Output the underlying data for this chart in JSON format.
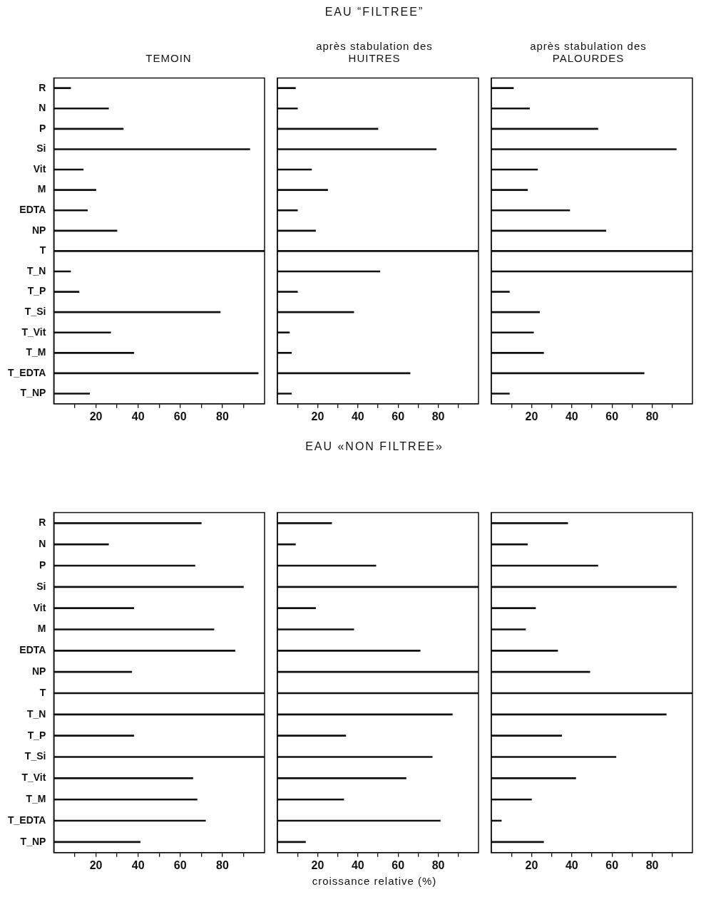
{
  "chart_data": [
    {
      "type": "bar",
      "orientation": "horizontal",
      "subtitle": "TEMOIN",
      "categories": [
        "R",
        "N",
        "P",
        "Si",
        "Vit",
        "M",
        "EDTA",
        "NP",
        "T",
        "T_N",
        "T_P",
        "T_Si",
        "T_Vit",
        "T_M",
        "T_EDTA",
        "T_NP"
      ],
      "values": [
        8,
        26,
        33,
        93,
        14,
        20,
        16,
        30,
        100,
        8,
        12,
        79,
        27,
        38,
        97,
        17
      ],
      "color": "#111111",
      "xlim": [
        0,
        100
      ],
      "xticks": [
        {
          "value": 10,
          "label": null
        },
        20,
        {
          "value": 30,
          "label": null
        },
        40,
        {
          "value": 50,
          "label": null
        },
        60,
        {
          "value": 70,
          "label": null
        },
        80,
        {
          "value": 90,
          "label": null
        }
      ]
    },
    {
      "type": "bar",
      "orientation": "horizontal",
      "title": "EAU “FILTREE”",
      "subtitle": "après stabulation des HUITRES",
      "categories": [
        null,
        null,
        null,
        null,
        null,
        null,
        null,
        null,
        null,
        null,
        null,
        null,
        null,
        null,
        null,
        null
      ],
      "values": [
        9,
        10,
        50,
        79,
        17,
        25,
        10,
        19,
        100,
        51,
        10,
        38,
        6,
        7,
        66,
        7
      ],
      "color": "#111111",
      "xlim": [
        0,
        100
      ],
      "xticks": [
        {
          "value": 10,
          "label": null
        },
        20,
        {
          "value": 30,
          "label": null
        },
        40,
        {
          "value": 50,
          "label": null
        },
        60,
        {
          "value": 70,
          "label": null
        },
        80,
        {
          "value": 90,
          "label": null
        }
      ]
    },
    {
      "type": "bar",
      "orientation": "horizontal",
      "subtitle": "après stabulation des PALOURDES",
      "categories": [
        null,
        null,
        null,
        null,
        null,
        null,
        null,
        null,
        null,
        null,
        null,
        null,
        null,
        null,
        null,
        null
      ],
      "values": [
        11,
        19,
        53,
        92,
        23,
        18,
        39,
        57,
        100,
        100,
        9,
        24,
        21,
        26,
        76,
        9
      ],
      "color": "#111111",
      "xlim": [
        0,
        100
      ],
      "xticks": [
        {
          "value": 10,
          "label": null
        },
        20,
        {
          "value": 30,
          "label": null
        },
        40,
        {
          "value": 50,
          "label": null
        },
        60,
        {
          "value": 70,
          "label": null
        },
        80,
        {
          "value": 90,
          "label": null
        }
      ]
    },
    {
      "type": "bar",
      "orientation": "horizontal",
      "categories": [
        "R",
        "N",
        "P",
        "Si",
        "Vit",
        "M",
        "EDTA",
        "NP",
        "T",
        "T_N",
        "T_P",
        "T_Si",
        "T_Vit",
        "T_M",
        "T_EDTA",
        "T_NP"
      ],
      "values": [
        70,
        26,
        67,
        90,
        38,
        76,
        86,
        37,
        100,
        100,
        38,
        100,
        66,
        68,
        72,
        41
      ],
      "color": "#111111",
      "xlim": [
        0,
        100
      ],
      "xticks": [
        {
          "value": 10,
          "label": null
        },
        20,
        {
          "value": 30,
          "label": null
        },
        40,
        {
          "value": 50,
          "label": null
        },
        60,
        {
          "value": 70,
          "label": null
        },
        80,
        {
          "value": 90,
          "label": null
        }
      ]
    },
    {
      "type": "bar",
      "orientation": "horizontal",
      "title": "EAU «NON FILTREE»",
      "xlabel": "croissance relative (%)",
      "categories": [
        null,
        null,
        null,
        null,
        null,
        null,
        null,
        null,
        null,
        null,
        null,
        null,
        null,
        null,
        null,
        null
      ],
      "values": [
        27,
        9,
        49,
        100,
        19,
        38,
        71,
        100,
        100,
        87,
        34,
        77,
        64,
        33,
        81,
        14
      ],
      "color": "#111111",
      "xlim": [
        0,
        100
      ],
      "xticks": [
        {
          "value": 10,
          "label": null
        },
        20,
        {
          "value": 30,
          "label": null
        },
        40,
        {
          "value": 50,
          "label": null
        },
        60,
        {
          "value": 70,
          "label": null
        },
        80,
        {
          "value": 90,
          "label": null
        }
      ]
    },
    {
      "type": "bar",
      "orientation": "horizontal",
      "categories": [
        null,
        null,
        null,
        null,
        null,
        null,
        null,
        null,
        null,
        null,
        null,
        null,
        null,
        null,
        null,
        null
      ],
      "values": [
        38,
        18,
        53,
        92,
        22,
        17,
        33,
        49,
        100,
        87,
        35,
        62,
        42,
        20,
        5,
        26
      ],
      "color": "#111111",
      "xlim": [
        0,
        100
      ],
      "xticks": [
        {
          "value": 10,
          "label": null
        },
        20,
        {
          "value": 30,
          "label": null
        },
        40,
        {
          "value": 50,
          "label": null
        },
        60,
        {
          "value": 70,
          "label": null
        },
        80,
        {
          "value": 90,
          "label": null
        }
      ]
    }
  ]
}
